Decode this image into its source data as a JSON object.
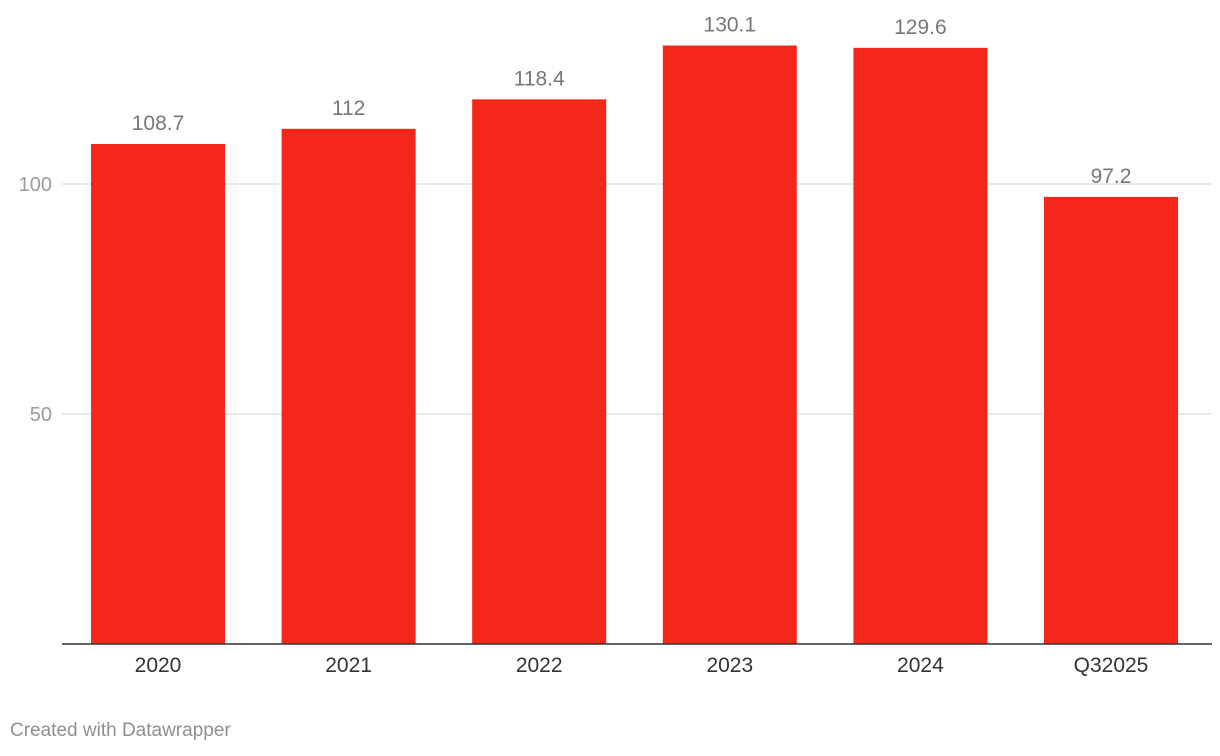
{
  "chart_data": {
    "type": "bar",
    "categories": [
      "2020",
      "2021",
      "2022",
      "2023",
      "2024",
      "Q32025"
    ],
    "values": [
      108.7,
      112,
      118.4,
      130.1,
      129.6,
      97.2
    ],
    "value_labels": [
      "108.7",
      "112",
      "118.4",
      "130.1",
      "129.6",
      "97.2"
    ],
    "yticks": [
      50,
      100
    ],
    "ytick_labels": [
      "50",
      "100"
    ],
    "ylim": [
      0,
      130.1
    ],
    "grid": true,
    "bar_color": "#f5261a",
    "title": "",
    "xlabel": "",
    "ylabel": ""
  },
  "footer": {
    "credit": "Created with Datawrapper"
  }
}
